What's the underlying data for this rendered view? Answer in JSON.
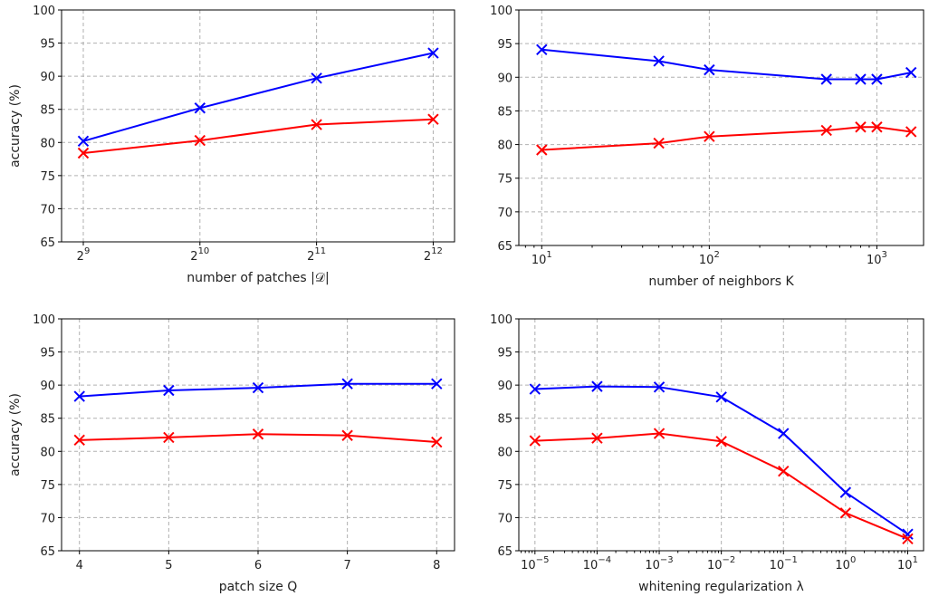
{
  "chart_data": [
    {
      "type": "line",
      "xscale": "log2",
      "xlabel": "number of patches |𝒟|",
      "ylabel": "accuracy (%)",
      "ylim": [
        65,
        100
      ],
      "yticks": [
        65,
        70,
        75,
        80,
        85,
        90,
        95,
        100
      ],
      "xlim": [
        450,
        4650
      ],
      "xticks": [
        512,
        1024,
        2048,
        4096
      ],
      "xtick_labels": [
        {
          "base": "2",
          "exp": "9"
        },
        {
          "base": "2",
          "exp": "10"
        },
        {
          "base": "2",
          "exp": "11"
        },
        {
          "base": "2",
          "exp": "12"
        }
      ],
      "grid": true,
      "series": [
        {
          "color": "#0000ff",
          "x": [
            512,
            1024,
            2048,
            4096
          ],
          "y": [
            80.2,
            85.2,
            89.7,
            93.5
          ]
        },
        {
          "color": "#ff0000",
          "x": [
            512,
            1024,
            2048,
            4096
          ],
          "y": [
            78.4,
            80.3,
            82.7,
            83.5
          ]
        }
      ]
    },
    {
      "type": "line",
      "xscale": "log10",
      "xlabel": "number of neighbors K",
      "ylabel": "",
      "ylim": [
        65,
        100
      ],
      "yticks": [
        65,
        70,
        75,
        80,
        85,
        90,
        95,
        100
      ],
      "xlim": [
        7.3,
        1900
      ],
      "xticks": [
        10,
        100,
        1000
      ],
      "xtick_labels": [
        {
          "base": "10",
          "exp": "1"
        },
        {
          "base": "10",
          "exp": "2"
        },
        {
          "base": "10",
          "exp": "3"
        }
      ],
      "grid": true,
      "series": [
        {
          "color": "#0000ff",
          "x": [
            10,
            50,
            100,
            500,
            800,
            1000,
            1600
          ],
          "y": [
            94.1,
            92.4,
            91.1,
            89.7,
            89.7,
            89.7,
            90.7
          ]
        },
        {
          "color": "#ff0000",
          "x": [
            10,
            50,
            100,
            500,
            800,
            1000,
            1600
          ],
          "y": [
            79.2,
            80.2,
            81.2,
            82.1,
            82.6,
            82.6,
            81.9
          ]
        }
      ]
    },
    {
      "type": "line",
      "xscale": "linear",
      "xlabel": "patch size Q",
      "ylabel": "accuracy (%)",
      "ylim": [
        65,
        100
      ],
      "yticks": [
        65,
        70,
        75,
        80,
        85,
        90,
        95,
        100
      ],
      "xlim": [
        3.8,
        8.2
      ],
      "xticks": [
        4,
        5,
        6,
        7,
        8
      ],
      "xtick_labels": [
        {
          "base": "4",
          "exp": ""
        },
        {
          "base": "5",
          "exp": ""
        },
        {
          "base": "6",
          "exp": ""
        },
        {
          "base": "7",
          "exp": ""
        },
        {
          "base": "8",
          "exp": ""
        }
      ],
      "grid": true,
      "series": [
        {
          "color": "#0000ff",
          "x": [
            4,
            5,
            6,
            7,
            8
          ],
          "y": [
            88.3,
            89.2,
            89.6,
            90.2,
            90.2
          ]
        },
        {
          "color": "#ff0000",
          "x": [
            4,
            5,
            6,
            7,
            8
          ],
          "y": [
            81.7,
            82.1,
            82.6,
            82.4,
            81.4
          ]
        }
      ]
    },
    {
      "type": "line",
      "xscale": "log10",
      "xlabel": "whitening regularization λ",
      "ylabel": "",
      "ylim": [
        65,
        100
      ],
      "yticks": [
        65,
        70,
        75,
        80,
        85,
        90,
        95,
        100
      ],
      "xlim": [
        5.5e-06,
        18
      ],
      "xticks": [
        1e-05,
        0.0001,
        0.001,
        0.01,
        0.1,
        1,
        10
      ],
      "xtick_labels": [
        {
          "base": "10",
          "exp": "−5"
        },
        {
          "base": "10",
          "exp": "−4"
        },
        {
          "base": "10",
          "exp": "−3"
        },
        {
          "base": "10",
          "exp": "−2"
        },
        {
          "base": "10",
          "exp": "−1"
        },
        {
          "base": "10",
          "exp": "0"
        },
        {
          "base": "10",
          "exp": "1"
        }
      ],
      "grid": true,
      "series": [
        {
          "color": "#0000ff",
          "x": [
            1e-05,
            0.0001,
            0.001,
            0.01,
            0.1,
            1,
            10
          ],
          "y": [
            89.4,
            89.8,
            89.7,
            88.2,
            82.7,
            73.8,
            67.5
          ]
        },
        {
          "color": "#ff0000",
          "x": [
            1e-05,
            0.0001,
            0.001,
            0.01,
            0.1,
            1,
            10
          ],
          "y": [
            81.6,
            82.0,
            82.7,
            81.5,
            77.0,
            70.7,
            66.8
          ]
        }
      ]
    }
  ]
}
